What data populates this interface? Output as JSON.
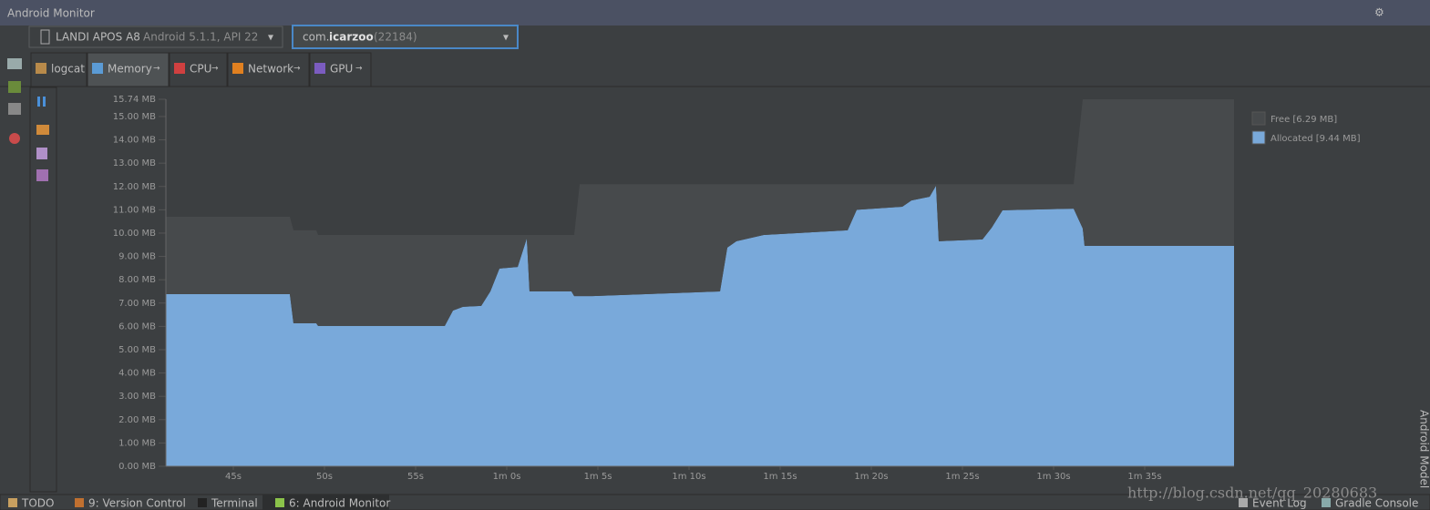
{
  "window_title": "Android Monitor",
  "device": {
    "name": "LANDI APOS A8",
    "detail": "Android 5.1.1, API 22"
  },
  "process": {
    "prefix": "com.",
    "name": "icarzoo",
    "pid": "(22184)"
  },
  "tabs": [
    "logcat",
    "Memory",
    "CPU",
    "Network",
    "GPU"
  ],
  "chart_data": {
    "type": "area",
    "stacked": true,
    "x": [
      41.3,
      48.1,
      48.3,
      49.55,
      49.65,
      56.6,
      57.05,
      57.6,
      58.6,
      59.1,
      59.6,
      60.6,
      61.1,
      61.25,
      63.55,
      63.7,
      64.0,
      64.7,
      71.7,
      72.1,
      72.6,
      74.1,
      78.7,
      79.2,
      81.7,
      82.2,
      83.2,
      83.55,
      83.7,
      86.1,
      86.6,
      87.2,
      91.1,
      91.6,
      91.7,
      99.9
    ],
    "xlim": [
      41.3,
      99.9
    ],
    "xticks": [
      {
        "value": 45,
        "label": "45s"
      },
      {
        "value": 50,
        "label": "50s"
      },
      {
        "value": 55,
        "label": "55s"
      },
      {
        "value": 60,
        "label": "1m 0s"
      },
      {
        "value": 65,
        "label": "1m 5s"
      },
      {
        "value": 70,
        "label": "1m 10s"
      },
      {
        "value": 75,
        "label": "1m 15s"
      },
      {
        "value": 80,
        "label": "1m 20s"
      },
      {
        "value": 85,
        "label": "1m 25s"
      },
      {
        "value": 90,
        "label": "1m 30s"
      },
      {
        "value": 95,
        "label": "1m 35s"
      }
    ],
    "ylim": [
      0,
      15.74
    ],
    "yticks": [
      {
        "value": 0,
        "label": "0.00 MB"
      },
      {
        "value": 1,
        "label": "1.00 MB"
      },
      {
        "value": 2,
        "label": "2.00 MB"
      },
      {
        "value": 3,
        "label": "3.00 MB"
      },
      {
        "value": 4,
        "label": "4.00 MB"
      },
      {
        "value": 5,
        "label": "5.00 MB"
      },
      {
        "value": 6,
        "label": "6.00 MB"
      },
      {
        "value": 7,
        "label": "7.00 MB"
      },
      {
        "value": 8,
        "label": "8.00 MB"
      },
      {
        "value": 9,
        "label": "9.00 MB"
      },
      {
        "value": 10,
        "label": "10.00 MB"
      },
      {
        "value": 11,
        "label": "11.00 MB"
      },
      {
        "value": 12,
        "label": "12.00 MB"
      },
      {
        "value": 13,
        "label": "13.00 MB"
      },
      {
        "value": 14,
        "label": "14.00 MB"
      },
      {
        "value": 15,
        "label": "15.00 MB"
      },
      {
        "value": 15.74,
        "label": "15.74 MB"
      }
    ],
    "legend": "top-right",
    "series": [
      {
        "name": "Allocated [9.44 MB]",
        "color": "#79a9da",
        "values": [
          7.38,
          7.38,
          6.13,
          6.13,
          6.02,
          6.02,
          6.68,
          6.84,
          6.88,
          7.5,
          8.48,
          8.55,
          9.77,
          7.5,
          7.5,
          7.3,
          7.3,
          7.3,
          7.5,
          9.38,
          9.65,
          9.92,
          10.12,
          11.0,
          11.13,
          11.4,
          11.56,
          12.03,
          9.65,
          9.73,
          10.23,
          10.98,
          11.05,
          10.2,
          9.45,
          9.45
        ]
      },
      {
        "name": "Free [6.29 MB]",
        "color": "#474a4c",
        "values": [
          3.32,
          3.32,
          3.99,
          3.99,
          3.9,
          3.9,
          3.24,
          3.08,
          3.04,
          2.42,
          1.44,
          1.37,
          0.15,
          2.42,
          2.42,
          2.62,
          4.8,
          4.8,
          4.6,
          2.72,
          2.45,
          2.18,
          1.98,
          1.1,
          0.97,
          0.7,
          0.54,
          0.07,
          2.45,
          2.37,
          1.87,
          1.12,
          1.05,
          5.54,
          6.29,
          6.29
        ]
      }
    ]
  },
  "bottom_tabs": [
    "TODO",
    "9: Version Control",
    "Terminal",
    "6: Android Monitor",
    "Event Log",
    "Gradle Console"
  ],
  "watermark": "http://blog.csdn.net/qq_20280683",
  "side_label": "Android Model"
}
